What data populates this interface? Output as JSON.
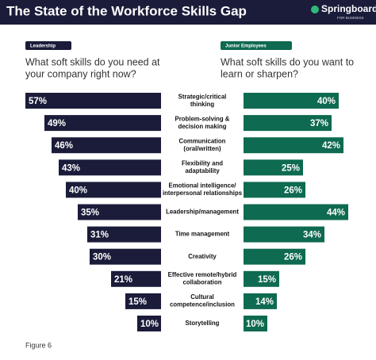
{
  "chart_data": {
    "type": "bar",
    "title": "The State of the Workforce Skills Gap",
    "brand": {
      "name": "Springboard",
      "tagline": "FOR BUSINESS"
    },
    "categories": [
      [
        "Strategic/critical",
        "thinking"
      ],
      [
        "Problem-solving &",
        "decision making"
      ],
      [
        "Communication",
        "(oral/written)"
      ],
      [
        "Flexibility and",
        "adaptability"
      ],
      [
        "Emotional intelligence/",
        "interpersonal relationships"
      ],
      [
        "Leadership/management"
      ],
      [
        "Time management"
      ],
      [
        "Creativity"
      ],
      [
        "Effective remote/hybrid",
        "collaboration"
      ],
      [
        "Cultural",
        "competence/inclusion"
      ],
      [
        "Storytelling"
      ]
    ],
    "series": [
      {
        "name": "Leadership",
        "color": "#1b1c3a",
        "question": [
          "What soft skills do you need at",
          "your company right now?"
        ],
        "values": [
          57,
          49,
          46,
          43,
          40,
          35,
          31,
          30,
          21,
          15,
          10
        ],
        "value_labels": [
          "57%",
          "49%",
          "46%",
          "43%",
          "40%",
          "35%",
          "31%",
          "30%",
          "21%",
          "15%",
          "10%"
        ]
      },
      {
        "name": "Junior Employees",
        "color": "#0e6a50",
        "question": [
          "What soft skills do you want to",
          "learn or sharpen?"
        ],
        "values": [
          40,
          37,
          42,
          25,
          26,
          44,
          34,
          26,
          15,
          14,
          10
        ],
        "value_labels": [
          "40%",
          "37%",
          "42%",
          "25%",
          "26%",
          "44%",
          "34%",
          "26%",
          "15%",
          "14%",
          "10%"
        ]
      }
    ],
    "footnote": "Figure 6"
  }
}
